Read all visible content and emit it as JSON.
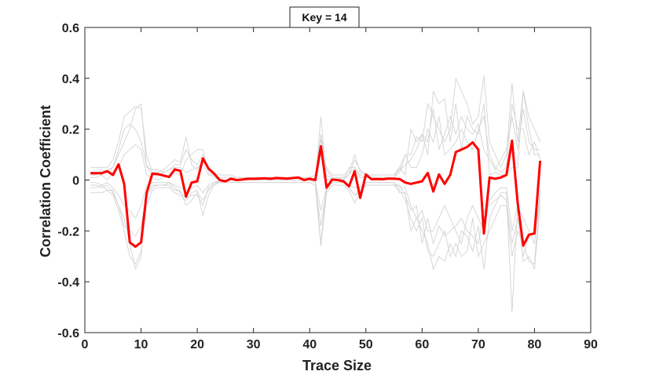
{
  "chart_data": {
    "type": "line",
    "title": "Key = 14",
    "xlabel": "Trace Size",
    "ylabel": "Correlation Coefficient",
    "xlim": [
      0,
      90
    ],
    "ylim": [
      -0.6,
      0.6
    ],
    "xticks": [
      "0",
      "10",
      "20",
      "30",
      "40",
      "50",
      "60",
      "70",
      "80",
      "90"
    ],
    "yticks": [
      "-0.6",
      "-0.4",
      "-0.2",
      "0",
      "0.2",
      "0.4",
      "0.6"
    ],
    "grid": false,
    "highlight": {
      "color": "#ff0000",
      "x": [
        1,
        2,
        3,
        4,
        5,
        6,
        7,
        8,
        9,
        10,
        11,
        12,
        13,
        14,
        15,
        16,
        17,
        18,
        19,
        20,
        21,
        22,
        23,
        24,
        25,
        26,
        27,
        28,
        29,
        30,
        31,
        32,
        33,
        34,
        35,
        36,
        37,
        38,
        39,
        40,
        41,
        42,
        43,
        44,
        45,
        46,
        47,
        48,
        49,
        50,
        51,
        52,
        53,
        54,
        55,
        56,
        57,
        58,
        59,
        60,
        61,
        62,
        63,
        64,
        65,
        66,
        67,
        68,
        69,
        70,
        71,
        72,
        73,
        74,
        75,
        76,
        77,
        78,
        79,
        80,
        81
      ],
      "values": [
        0.027,
        0.027,
        0.027,
        0.035,
        0.02,
        0.062,
        -0.015,
        -0.245,
        -0.262,
        -0.245,
        -0.05,
        0.025,
        0.023,
        0.018,
        0.012,
        0.042,
        0.036,
        -0.065,
        -0.01,
        -0.005,
        0.085,
        0.045,
        0.025,
        0.0,
        -0.005,
        0.005,
        0.0,
        0.002,
        0.005,
        0.005,
        0.006,
        0.007,
        0.005,
        0.008,
        0.007,
        0.006,
        0.008,
        0.01,
        0.0,
        0.005,
        0.0,
        0.133,
        -0.03,
        0.002,
        0.0,
        -0.005,
        -0.025,
        0.035,
        -0.07,
        0.022,
        0.003,
        0.004,
        0.003,
        0.006,
        0.005,
        0.004,
        -0.01,
        -0.015,
        -0.01,
        -0.005,
        0.028,
        -0.045,
        0.022,
        -0.015,
        0.02,
        0.11,
        0.12,
        0.13,
        0.148,
        0.12,
        -0.21,
        0.01,
        0.005,
        0.01,
        0.02,
        0.155,
        -0.09,
        -0.258,
        -0.215,
        -0.21,
        0.076
      ]
    },
    "background_series": {
      "color": "#d3d3d3",
      "series": [
        {
          "values": [
            0.02,
            0.02,
            0.04,
            0.03,
            0.05,
            0.1,
            0.15,
            0.2,
            0.28,
            0.3,
            0.05,
            0.04,
            0.04,
            0.03,
            0.04,
            0.05,
            0.05,
            0.03,
            0.04,
            0.05,
            0.06,
            0.02,
            0.02,
            0.0,
            0.0,
            0.0,
            0.0,
            0.0,
            0.0,
            0.0,
            0.0,
            0.0,
            0.0,
            0.0,
            0.0,
            0.0,
            0.0,
            0.0,
            0.0,
            0.0,
            0.0,
            0.25,
            0.0,
            0.0,
            0.0,
            0.0,
            0.05,
            0.05,
            0.02,
            0.01,
            0.01,
            0.01,
            0.01,
            0.01,
            0.01,
            0.05,
            0.02,
            0.2,
            0.15,
            0.18,
            0.1,
            0.35,
            0.3,
            0.32,
            0.15,
            0.3,
            0.12,
            0.25,
            0.2,
            0.18,
            0.3,
            0.02,
            0.03,
            0.02,
            0.02,
            0.05,
            0.05,
            0.35,
            0.2,
            0.1,
            0.1
          ]
        },
        {
          "values": [
            -0.02,
            -0.02,
            -0.03,
            -0.02,
            -0.05,
            -0.1,
            -0.15,
            -0.25,
            -0.35,
            -0.3,
            -0.05,
            -0.02,
            -0.02,
            -0.02,
            -0.01,
            -0.03,
            -0.05,
            -0.07,
            -0.06,
            -0.06,
            -0.1,
            -0.03,
            -0.02,
            0.0,
            0.0,
            0.0,
            0.0,
            0.0,
            0.0,
            0.0,
            0.0,
            0.0,
            0.0,
            0.0,
            0.0,
            0.0,
            0.0,
            0.0,
            0.0,
            0.0,
            0.0,
            -0.25,
            -0.02,
            0.0,
            0.0,
            0.0,
            -0.03,
            -0.06,
            -0.05,
            -0.01,
            -0.01,
            -0.01,
            -0.01,
            -0.01,
            -0.01,
            -0.05,
            -0.05,
            -0.2,
            -0.15,
            -0.2,
            -0.25,
            -0.35,
            -0.3,
            -0.32,
            -0.25,
            -0.3,
            -0.2,
            -0.22,
            -0.28,
            -0.18,
            -0.35,
            -0.15,
            -0.1,
            -0.05,
            -0.05,
            -0.52,
            -0.1,
            -0.32,
            -0.3,
            -0.35,
            -0.1
          ]
        },
        {
          "values": [
            0.05,
            0.05,
            0.05,
            0.05,
            0.08,
            0.15,
            0.25,
            0.27,
            0.29,
            0.28,
            0.1,
            0.03,
            0.03,
            0.04,
            0.06,
            0.08,
            0.07,
            0.17,
            0.06,
            0.04,
            0.08,
            0.05,
            0.03,
            0.02,
            0.02,
            0.02,
            0.01,
            0.01,
            0.01,
            0.01,
            0.01,
            0.01,
            0.01,
            0.01,
            0.01,
            0.01,
            0.01,
            0.01,
            0.01,
            0.01,
            0.02,
            0.1,
            0.05,
            0.02,
            0.02,
            0.02,
            0.03,
            0.1,
            0.03,
            0.02,
            0.02,
            0.02,
            0.02,
            0.02,
            0.02,
            0.05,
            0.1,
            0.1,
            0.17,
            0.15,
            0.3,
            0.25,
            0.2,
            0.15,
            0.2,
            0.4,
            0.35,
            0.3,
            0.22,
            0.25,
            0.41,
            0.15,
            0.1,
            0.05,
            0.1,
            0.38,
            0.15,
            0.35,
            0.25,
            0.2,
            0.15
          ]
        },
        {
          "values": [
            -0.05,
            -0.05,
            -0.05,
            -0.04,
            -0.06,
            -0.12,
            -0.2,
            -0.3,
            -0.33,
            -0.28,
            -0.1,
            -0.04,
            -0.03,
            -0.03,
            -0.03,
            -0.05,
            -0.06,
            -0.08,
            -0.05,
            -0.04,
            -0.14,
            -0.06,
            -0.02,
            -0.01,
            -0.01,
            -0.01,
            -0.01,
            -0.01,
            -0.01,
            -0.01,
            -0.01,
            -0.01,
            -0.01,
            -0.01,
            -0.01,
            -0.01,
            -0.01,
            -0.01,
            -0.01,
            -0.01,
            -0.02,
            -0.26,
            -0.05,
            -0.02,
            -0.02,
            -0.02,
            -0.04,
            -0.09,
            -0.05,
            -0.02,
            -0.02,
            -0.02,
            -0.02,
            -0.02,
            -0.02,
            -0.04,
            -0.08,
            -0.15,
            -0.2,
            -0.15,
            -0.28,
            -0.3,
            -0.25,
            -0.2,
            -0.3,
            -0.25,
            -0.3,
            -0.28,
            -0.15,
            -0.3,
            -0.25,
            -0.2,
            -0.15,
            -0.1,
            -0.1,
            -0.3,
            -0.2,
            -0.25,
            -0.32,
            -0.33,
            -0.05
          ]
        },
        {
          "values": [
            0.01,
            0.01,
            0.02,
            0.0,
            0.03,
            0.05,
            0.1,
            0.12,
            0.14,
            0.12,
            0.02,
            0.01,
            0.0,
            0.01,
            0.02,
            0.03,
            0.02,
            0.08,
            0.1,
            0.12,
            0.12,
            0.03,
            0.01,
            0.0,
            0.0,
            0.0,
            0.0,
            0.0,
            0.0,
            0.0,
            0.0,
            0.0,
            0.0,
            0.0,
            0.0,
            0.0,
            0.0,
            0.0,
            0.0,
            0.0,
            0.01,
            0.16,
            0.02,
            0.0,
            0.01,
            0.0,
            0.02,
            0.05,
            0.01,
            0.01,
            0.01,
            0.01,
            0.01,
            0.01,
            0.01,
            0.03,
            0.1,
            0.05,
            0.05,
            0.1,
            0.2,
            0.15,
            0.25,
            0.1,
            0.12,
            0.15,
            0.2,
            0.15,
            0.12,
            0.2,
            0.25,
            0.1,
            0.05,
            0.03,
            0.05,
            0.3,
            0.2,
            0.2,
            0.1,
            0.15,
            0.08
          ]
        },
        {
          "values": [
            -0.01,
            -0.01,
            -0.02,
            -0.01,
            -0.03,
            -0.06,
            -0.1,
            -0.12,
            -0.15,
            -0.1,
            -0.02,
            -0.01,
            -0.01,
            -0.01,
            -0.01,
            -0.02,
            -0.03,
            -0.04,
            -0.03,
            -0.02,
            -0.05,
            -0.02,
            -0.01,
            0.0,
            0.0,
            0.0,
            0.0,
            0.0,
            0.0,
            0.0,
            0.0,
            0.0,
            0.0,
            0.0,
            0.0,
            0.0,
            0.0,
            0.0,
            0.0,
            0.0,
            -0.01,
            -0.12,
            -0.03,
            0.0,
            0.0,
            0.0,
            -0.02,
            -0.03,
            -0.03,
            -0.01,
            -0.01,
            -0.01,
            -0.01,
            -0.01,
            -0.01,
            -0.03,
            -0.03,
            -0.1,
            -0.15,
            -0.12,
            -0.2,
            -0.2,
            -0.15,
            -0.1,
            -0.15,
            -0.2,
            -0.25,
            -0.15,
            -0.1,
            -0.15,
            -0.2,
            -0.08,
            -0.05,
            -0.03,
            -0.03,
            -0.2,
            -0.1,
            -0.15,
            -0.2,
            -0.25,
            -0.04
          ]
        },
        {
          "values": [
            0.03,
            0.03,
            0.02,
            0.04,
            0.05,
            0.12,
            0.2,
            0.22,
            0.2,
            0.15,
            0.06,
            0.02,
            0.02,
            0.03,
            0.04,
            0.06,
            0.06,
            0.12,
            0.08,
            0.06,
            0.1,
            0.04,
            0.02,
            0.01,
            0.01,
            0.01,
            0.01,
            0.01,
            0.01,
            0.01,
            0.01,
            0.01,
            0.01,
            0.01,
            0.01,
            0.01,
            0.01,
            0.01,
            0.01,
            0.01,
            0.02,
            0.18,
            0.04,
            0.01,
            0.01,
            0.01,
            0.02,
            0.08,
            0.04,
            0.02,
            0.02,
            0.02,
            0.02,
            0.02,
            0.02,
            0.04,
            0.06,
            0.08,
            0.12,
            0.18,
            0.15,
            0.28,
            0.12,
            0.18,
            0.25,
            0.18,
            0.25,
            0.2,
            0.18,
            0.22,
            0.12,
            0.08,
            0.04,
            0.08,
            0.12,
            0.25,
            0.12,
            0.28,
            0.15,
            0.12,
            0.12
          ]
        },
        {
          "values": [
            -0.03,
            -0.03,
            -0.02,
            -0.04,
            -0.04,
            -0.1,
            -0.18,
            -0.2,
            -0.22,
            -0.18,
            -0.06,
            -0.03,
            -0.02,
            -0.02,
            -0.02,
            -0.04,
            -0.04,
            -0.1,
            -0.08,
            -0.05,
            -0.08,
            -0.04,
            -0.01,
            -0.01,
            -0.01,
            -0.01,
            -0.01,
            -0.01,
            -0.01,
            -0.01,
            -0.01,
            -0.01,
            -0.01,
            -0.01,
            -0.01,
            -0.01,
            -0.01,
            -0.01,
            -0.01,
            -0.01,
            -0.02,
            -0.18,
            -0.04,
            -0.01,
            -0.01,
            -0.01,
            -0.03,
            -0.06,
            -0.04,
            -0.02,
            -0.02,
            -0.02,
            -0.02,
            -0.02,
            -0.02,
            -0.02,
            -0.06,
            -0.12,
            -0.1,
            -0.25,
            -0.15,
            -0.25,
            -0.18,
            -0.22,
            -0.2,
            -0.18,
            -0.15,
            -0.2,
            -0.22,
            -0.25,
            -0.12,
            -0.1,
            -0.08,
            -0.06,
            -0.08,
            -0.25,
            -0.15,
            -0.3,
            -0.22,
            -0.2,
            -0.08
          ]
        }
      ]
    }
  }
}
